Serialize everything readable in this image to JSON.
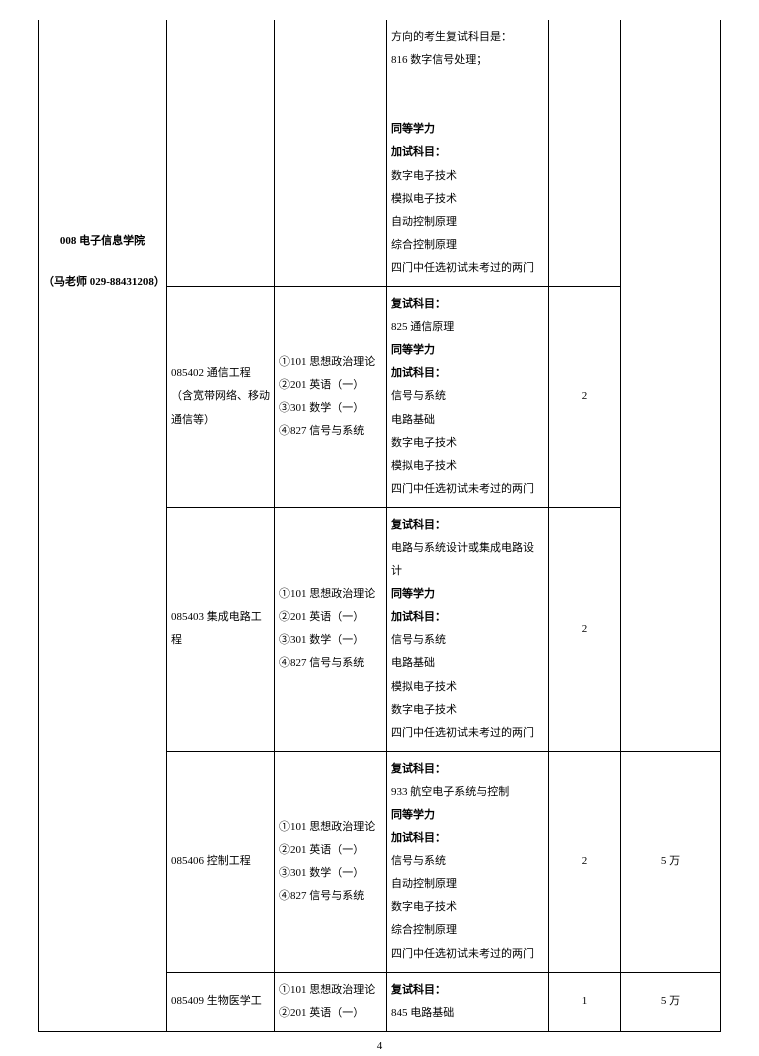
{
  "dept": {
    "code_name": "008 电子信息学院",
    "contact": "（马老师 029-88431208）"
  },
  "rows": [
    {
      "major": "",
      "exam": "",
      "remark_lines": [
        {
          "t": "方向的考生复试科目是：",
          "b": false
        },
        {
          "t": "816 数字信号处理；",
          "b": false
        },
        {
          "t": "",
          "b": false
        },
        {
          "t": "同等学力",
          "b": true
        },
        {
          "t": "加试科目：",
          "b": true
        },
        {
          "t": "数字电子技术",
          "b": false
        },
        {
          "t": "模拟电子技术",
          "b": false
        },
        {
          "t": "自动控制原理",
          "b": false
        },
        {
          "t": "综合控制原理",
          "b": false
        },
        {
          "t": "四门中任选初试未考过的两门",
          "b": false
        }
      ],
      "num": "",
      "fee": ""
    },
    {
      "major": "085402 通信工程（含宽带网络、移动通信等）",
      "exam_lines": [
        "①101 思想政治理论",
        "②201 英语（一）",
        "③301 数学（一）",
        "④827 信号与系统"
      ],
      "remark_lines": [
        {
          "t": "复试科目：",
          "b": true
        },
        {
          "t": "825 通信原理",
          "b": false
        },
        {
          "t": "同等学力",
          "b": true
        },
        {
          "t": "加试科目：",
          "b": true
        },
        {
          "t": "信号与系统",
          "b": false
        },
        {
          "t": "电路基础",
          "b": false
        },
        {
          "t": "数字电子技术",
          "b": false
        },
        {
          "t": "模拟电子技术",
          "b": false
        },
        {
          "t": "四门中任选初试未考过的两门",
          "b": false
        }
      ],
      "num": "2",
      "fee": ""
    },
    {
      "major": "085403  集成电路工程",
      "exam_lines": [
        "①101 思想政治理论",
        "②201 英语（一）",
        "③301 数学（一）",
        "④827 信号与系统"
      ],
      "remark_lines": [
        {
          "t": "复试科目：",
          "b": true
        },
        {
          "t": "电路与系统设计或集成电路设计",
          "b": false
        },
        {
          "t": "同等学力",
          "b": true
        },
        {
          "t": "加试科目：",
          "b": true
        },
        {
          "t": "信号与系统",
          "b": false
        },
        {
          "t": "电路基础",
          "b": false
        },
        {
          "t": "模拟电子技术",
          "b": false
        },
        {
          "t": "数字电子技术",
          "b": false
        },
        {
          "t": "四门中任选初试未考过的两门",
          "b": false
        }
      ],
      "num": "2",
      "fee": ""
    },
    {
      "major": "085406 控制工程",
      "exam_lines": [
        "①101 思想政治理论",
        "②201 英语（一）",
        "③301 数学（一）",
        "④827 信号与系统"
      ],
      "remark_lines": [
        {
          "t": "复试科目：",
          "b": true
        },
        {
          "t": "933 航空电子系统与控制",
          "b": false
        },
        {
          "t": "同等学力",
          "b": true
        },
        {
          "t": "加试科目：",
          "b": true
        },
        {
          "t": "信号与系统",
          "b": false
        },
        {
          "t": "自动控制原理",
          "b": false
        },
        {
          "t": "数字电子技术",
          "b": false
        },
        {
          "t": "综合控制原理",
          "b": false
        },
        {
          "t": "四门中任选初试未考过的两门",
          "b": false
        }
      ],
      "num": "2",
      "fee": "5 万"
    },
    {
      "major": "085409  生物医学工",
      "exam_lines": [
        "①101 思想政治理论",
        "②201 英语（一）"
      ],
      "remark_lines": [
        {
          "t": "复试科目：",
          "b": true
        },
        {
          "t": "845 电路基础",
          "b": false
        }
      ],
      "num": "1",
      "fee": "5 万"
    }
  ],
  "page_number": "4"
}
